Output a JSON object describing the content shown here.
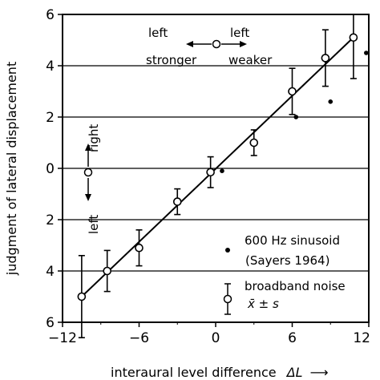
{
  "chart_data": {
    "type": "scatter",
    "xlabel": "interaural level difference",
    "xlabel_symbol": "ΔL",
    "ylabel": "judgment of lateral displacement",
    "xlim": [
      -12,
      12
    ],
    "ylim": [
      -6,
      6
    ],
    "x_ticks": [
      -12,
      -6,
      0,
      6,
      12
    ],
    "x_tick_labels": [
      "−12",
      "−6",
      "0",
      "6",
      "12"
    ],
    "y_ticks": [
      6,
      4,
      2,
      0,
      -2,
      -4,
      -6
    ],
    "y_tick_labels": [
      "6",
      "4",
      "2",
      "0",
      "2",
      "4",
      "6"
    ],
    "grid": "horizontal",
    "series": [
      {
        "name": "broadband noise",
        "name_stat": "x̄ ± s",
        "marker": "open-circle",
        "points": [
          {
            "x": -10.5,
            "y": -5.0,
            "err": 1.6
          },
          {
            "x": -8.5,
            "y": -4.0,
            "err": 0.8
          },
          {
            "x": -6.0,
            "y": -3.1,
            "err": 0.7
          },
          {
            "x": -3.0,
            "y": -1.3,
            "err": 0.5
          },
          {
            "x": -0.4,
            "y": -0.15,
            "err": 0.6
          },
          {
            "x": 3.0,
            "y": 1.0,
            "err": 0.5
          },
          {
            "x": 6.0,
            "y": 3.0,
            "err": 0.9
          },
          {
            "x": 8.6,
            "y": 4.3,
            "err": 1.1
          },
          {
            "x": 10.8,
            "y": 5.1,
            "err": 1.6
          }
        ]
      },
      {
        "name": "600 Hz sinusoid",
        "name_source": "(Sayers 1964)",
        "marker": "filled-dot",
        "points": [
          {
            "x": 0.5,
            "y": -0.1
          },
          {
            "x": 6.3,
            "y": 2.0
          },
          {
            "x": 9.0,
            "y": 2.6
          },
          {
            "x": 11.8,
            "y": 4.5
          }
        ]
      }
    ],
    "fit_line": {
      "x": [
        -10.5,
        11.0
      ],
      "y": [
        -5.0,
        5.2
      ]
    },
    "annotations": {
      "left_stronger_1": "left",
      "left_stronger_2": "stronger",
      "left_weaker_1": "left",
      "left_weaker_2": "weaker",
      "right": "right",
      "left": "left"
    }
  }
}
